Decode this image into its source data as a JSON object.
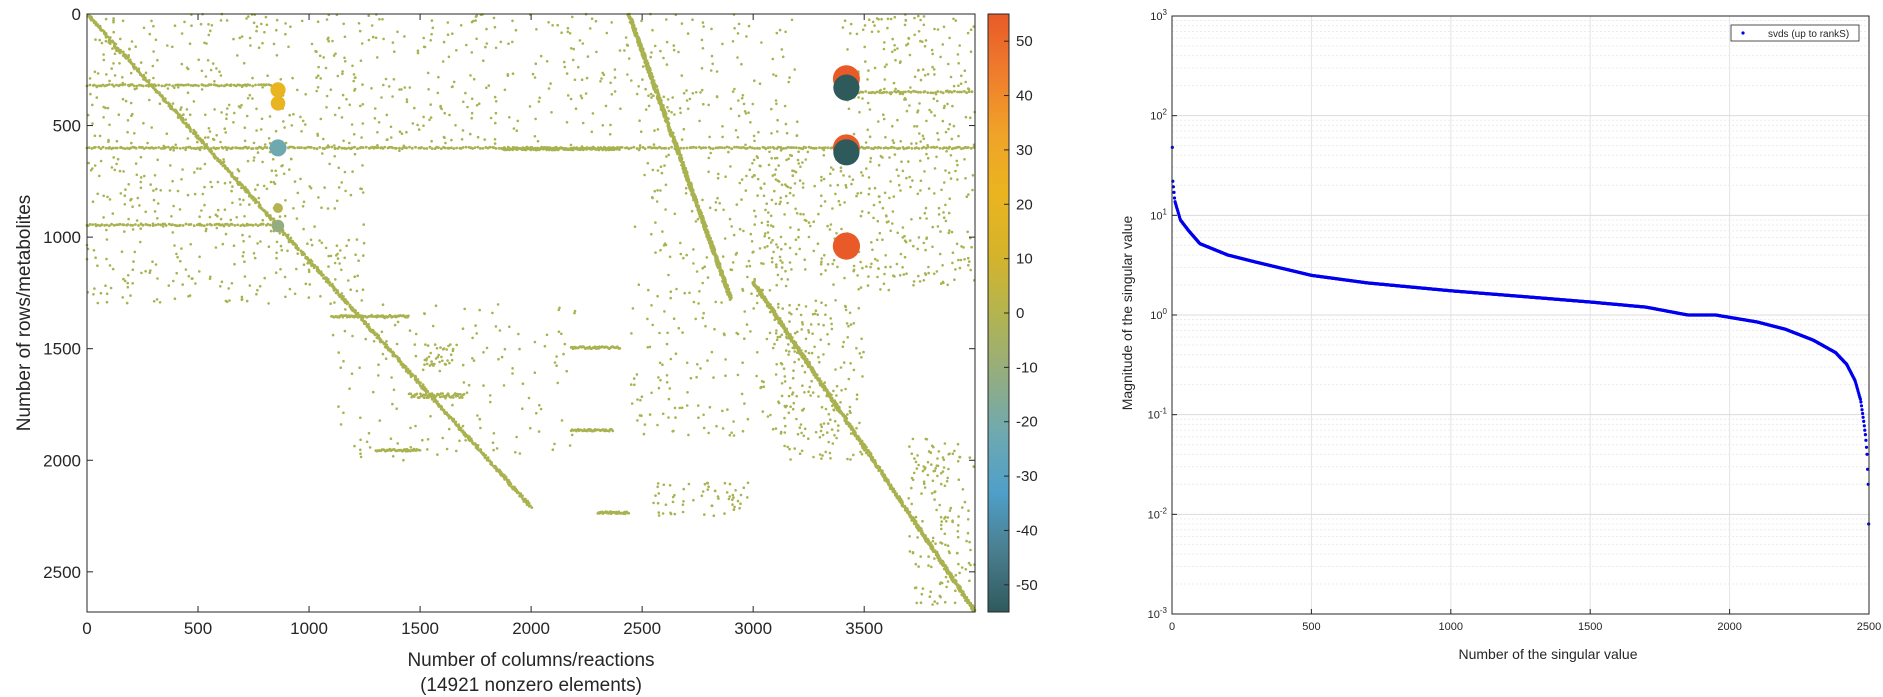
{
  "chart_data": [
    {
      "type": "scatter",
      "subtype": "sparsity-pattern",
      "xlabel": "Number of columns/reactions",
      "xlabel2": "(14921 nonzero elements)",
      "ylabel": "Number of rows/metabolites",
      "xlim": [
        0,
        3999
      ],
      "ylim": [
        0,
        2680
      ],
      "y_reversed": true,
      "xticks": [
        0,
        500,
        1000,
        1500,
        2000,
        2500,
        3000,
        3500
      ],
      "yticks": [
        0,
        500,
        1000,
        1500,
        2000,
        2500
      ],
      "nonzero_count": 14921,
      "base_color": "#a9b24f",
      "colorbar": {
        "ticks": [
          50,
          40,
          30,
          20,
          10,
          0,
          -10,
          -20,
          -30,
          -40,
          -50
        ],
        "range": [
          -55,
          55
        ],
        "colors": [
          "#2e5a5c",
          "#4a7d8e",
          "#4f9fc9",
          "#6fa9b0",
          "#95ad7e",
          "#b4b44f",
          "#d6b32a",
          "#eab420",
          "#f0a328",
          "#ef7d2d",
          "#e85b28"
        ]
      },
      "structures": {
        "diagonal_bands": [
          {
            "x": [
              0,
              2000
            ],
            "y": [
              0,
              2210
            ]
          },
          {
            "x": [
              2440,
              2900
            ],
            "y": [
              0,
              1280
            ]
          },
          {
            "x": [
              3000,
              4000
            ],
            "y": [
              1200,
              2680
            ]
          }
        ],
        "horizontal_lines": [
          {
            "y": 600,
            "x": [
              0,
              4000
            ]
          },
          {
            "y": 320,
            "x": [
              0,
              850
            ]
          },
          {
            "y": 350,
            "x": [
              3450,
              4000
            ]
          },
          {
            "y": 945,
            "x": [
              0,
              850
            ]
          }
        ],
        "large_values": [
          {
            "x": 860,
            "y": 600,
            "value": -25
          },
          {
            "x": 860,
            "y": 870,
            "value": -5
          },
          {
            "x": 860,
            "y": 950,
            "value": -12
          },
          {
            "x": 860,
            "y": 340,
            "value": 20
          },
          {
            "x": 860,
            "y": 400,
            "value": 18
          },
          {
            "x": 3420,
            "y": 290,
            "value": 52
          },
          {
            "x": 3420,
            "y": 330,
            "value": -50
          },
          {
            "x": 3420,
            "y": 600,
            "value": 52
          },
          {
            "x": 3420,
            "y": 620,
            "value": -50
          },
          {
            "x": 3420,
            "y": 1040,
            "value": 53
          }
        ]
      }
    },
    {
      "type": "scatter",
      "xlabel": "Number of the singular value",
      "ylabel": "Magnitude of the singular value",
      "xlim": [
        0,
        2500
      ],
      "ylim": [
        0.001,
        1000
      ],
      "yscale": "log",
      "grid": true,
      "legend": {
        "label": "svds (up to rankS)",
        "position": "top-right"
      },
      "marker_color": "#0000ee",
      "xticks": [
        0,
        500,
        1000,
        1500,
        2000,
        2500
      ],
      "yticks": [
        {
          "base": "10",
          "exp": "3",
          "value": 1000
        },
        {
          "base": "10",
          "exp": "2",
          "value": 100
        },
        {
          "base": "10",
          "exp": "1",
          "value": 10
        },
        {
          "base": "10",
          "exp": "0",
          "value": 1
        },
        {
          "base": "10",
          "exp": "-1",
          "value": 0.1
        },
        {
          "base": "10",
          "exp": "-2",
          "value": 0.01
        },
        {
          "base": "10",
          "exp": "-3",
          "value": 0.001
        }
      ],
      "curve": [
        [
          1,
          48
        ],
        [
          3,
          22
        ],
        [
          10,
          14
        ],
        [
          30,
          9
        ],
        [
          60,
          7
        ],
        [
          100,
          5.2
        ],
        [
          200,
          4
        ],
        [
          300,
          3.4
        ],
        [
          500,
          2.5
        ],
        [
          700,
          2.1
        ],
        [
          1000,
          1.75
        ],
        [
          1300,
          1.5
        ],
        [
          1500,
          1.35
        ],
        [
          1700,
          1.2
        ],
        [
          1850,
          1.0
        ],
        [
          1950,
          1.0
        ],
        [
          2100,
          0.85
        ],
        [
          2200,
          0.72
        ],
        [
          2300,
          0.56
        ],
        [
          2380,
          0.42
        ],
        [
          2420,
          0.32
        ],
        [
          2450,
          0.22
        ],
        [
          2470,
          0.14
        ],
        [
          2480,
          0.09
        ],
        [
          2488,
          0.06
        ],
        [
          2493,
          0.04
        ],
        [
          2497,
          0.02
        ],
        [
          2499,
          0.008
        ]
      ]
    }
  ]
}
